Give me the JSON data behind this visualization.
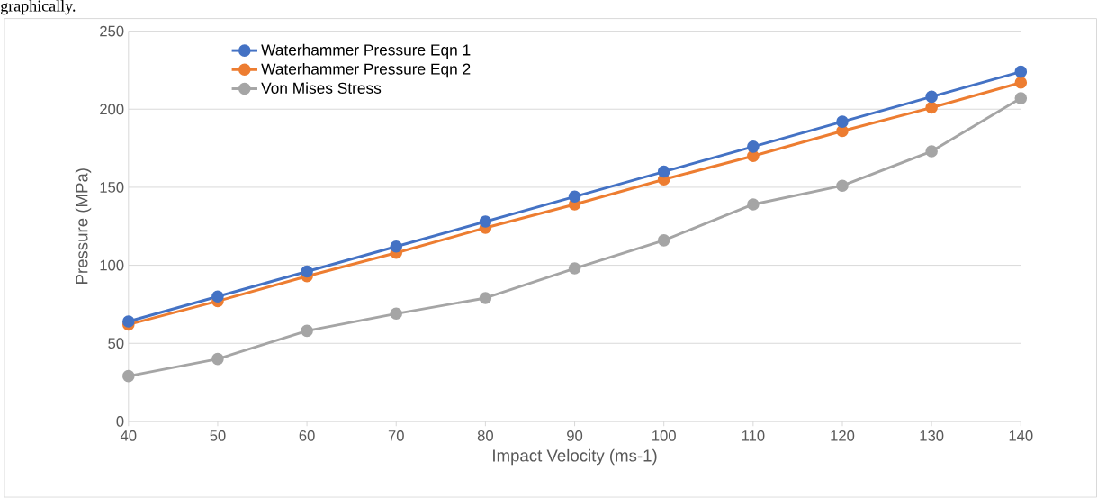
{
  "chart_data": {
    "type": "line",
    "xlabel": "Impact Velocity (ms-1)",
    "ylabel": "Pressure (MPa)",
    "annotations": [
      "graphically."
    ],
    "x": [
      40,
      50,
      60,
      70,
      80,
      90,
      100,
      110,
      120,
      130,
      140
    ],
    "xlim": [
      40,
      140
    ],
    "xticks": [
      40,
      50,
      60,
      70,
      80,
      90,
      100,
      110,
      120,
      130,
      140
    ],
    "ylim": [
      0,
      250
    ],
    "yticks": [
      0,
      50,
      100,
      150,
      200,
      250
    ],
    "grid": "y",
    "legend": "top left",
    "marker": "circle",
    "line_style": "solid",
    "series": [
      {
        "name": "Waterhammer Pressure Eqn 1",
        "color": "#4472c4",
        "values": [
          64,
          80,
          96,
          112,
          128,
          144,
          160,
          176,
          192,
          208,
          224
        ]
      },
      {
        "name": "Waterhammer Pressure Eqn 2",
        "color": "#ed7d31",
        "values": [
          62,
          77,
          93,
          108,
          124,
          139,
          155,
          170,
          186,
          201,
          217
        ]
      },
      {
        "name": "Von Mises Stress",
        "color": "#a5a5a5",
        "values": [
          29,
          40,
          58,
          69,
          79,
          98,
          116,
          139,
          151,
          173,
          207
        ]
      }
    ]
  }
}
